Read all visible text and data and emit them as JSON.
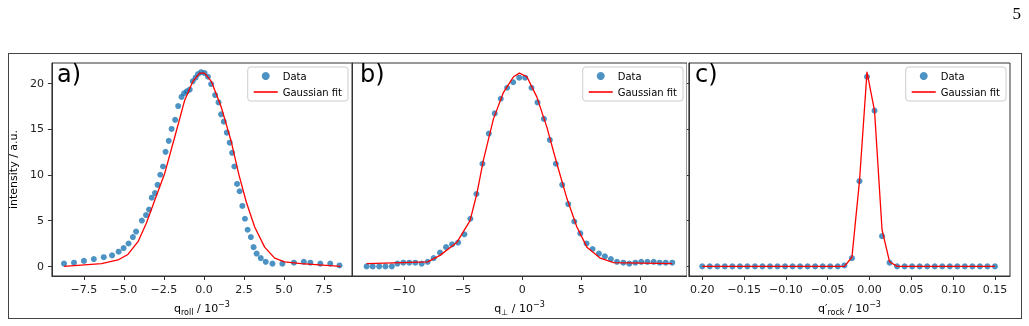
{
  "chart_data": [
    {
      "type": "scatter",
      "title": "a)",
      "xlabel": "q$_{roll}$ / 10$^{−3}$",
      "ylabel": "intensity / a.u.",
      "annotations": [
        "5"
      ],
      "legend": "top right",
      "xlim": [
        -9.5,
        9.25
      ],
      "ylim": [
        -1.05,
        22.2
      ],
      "xticks": [
        {
          "value": -7.5,
          "label": "−7.5"
        },
        {
          "value": -5,
          "label": "−5.0"
        },
        {
          "value": -2.5,
          "label": "−2.5"
        },
        {
          "value": 0,
          "label": "0.0"
        },
        {
          "value": 2.5,
          "label": "2.5"
        },
        {
          "value": 5,
          "label": "5.0"
        },
        {
          "value": 7.5,
          "label": "7.5"
        }
      ],
      "yticks": [
        0,
        5,
        10,
        15,
        20
      ],
      "series": [
        {
          "name": "Data",
          "color": "#1f77b4",
          "marker": "circle",
          "x": [
            -8.74,
            -8.12,
            -7.5,
            -6.88,
            -6.26,
            -5.74,
            -5.33,
            -5.02,
            -4.71,
            -4.44,
            -4.24,
            -3.88,
            -3.62,
            -3.43,
            -3.26,
            -3.06,
            -2.9,
            -2.73,
            -2.56,
            -2.4,
            -2.2,
            -2.02,
            -1.8,
            -1.61,
            -1.4,
            -1.24,
            -1.07,
            -0.89,
            -0.7,
            -0.52,
            -0.37,
            -0.17,
            0.04,
            0.25,
            0.45,
            0.7,
            0.91,
            1.07,
            1.24,
            1.43,
            1.61,
            1.76,
            1.9,
            2.07,
            2.23,
            2.4,
            2.56,
            2.73,
            2.93,
            3.1,
            3.29,
            3.55,
            3.86,
            4.28,
            4.9,
            5.62,
            6.24,
            6.65,
            7.27,
            7.89,
            8.47
          ],
          "values": [
            0.3,
            0.4,
            0.6,
            0.8,
            1.0,
            1.2,
            1.6,
            2.0,
            2.5,
            3.2,
            3.8,
            5.0,
            5.6,
            6.2,
            7.5,
            8.0,
            8.9,
            10.0,
            10.9,
            12.5,
            13.7,
            15.0,
            16.0,
            17.5,
            18.5,
            18.9,
            19.1,
            19.3,
            20.2,
            20.6,
            21.0,
            21.2,
            21.1,
            20.7,
            19.9,
            18.7,
            17.9,
            16.6,
            15.8,
            14.6,
            13.5,
            12.4,
            10.9,
            9.0,
            8.2,
            6.6,
            5.2,
            4.0,
            3.2,
            2.1,
            1.4,
            0.9,
            0.5,
            0.3,
            0.3,
            0.4,
            0.5,
            0.4,
            0.3,
            0.3,
            0.1
          ]
        },
        {
          "name": "Gaussian fit",
          "type": "line",
          "color": "#ff0000",
          "x": [
            -8.74,
            -6.4,
            -5.37,
            -4.75,
            -4.12,
            -3.6,
            -3.08,
            -2.46,
            -1.83,
            -1.21,
            -0.69,
            -0.27,
            0.04,
            0.46,
            1.08,
            1.71,
            2.17,
            2.65,
            3.17,
            3.79,
            4.42,
            5.04,
            6.08,
            8.54
          ],
          "values": [
            0.0,
            0.3,
            0.7,
            1.3,
            2.7,
            4.7,
            7.2,
            10.1,
            14.1,
            18.1,
            20.2,
            21.1,
            21.1,
            20.2,
            17.4,
            13.6,
            10.1,
            7.0,
            4.3,
            2.1,
            0.9,
            0.5,
            0.3,
            0.0
          ]
        }
      ]
    },
    {
      "type": "scatter",
      "title": "b)",
      "xlabel": "q$_{⊥}$ / 10$^{−3}$",
      "tick_labels": "x",
      "legend": "top right",
      "xlim": [
        -14.4,
        13.95
      ],
      "ylim": [
        -1.05,
        22.2
      ],
      "xticks": [
        {
          "value": -10,
          "label": "−10"
        },
        {
          "value": -5,
          "label": "−5"
        },
        0,
        5,
        10
      ],
      "yticks": [
        0,
        5,
        10,
        15,
        20
      ],
      "series": [
        {
          "name": "Data",
          "color": "#1f77b4",
          "marker": "circle",
          "x": [
            -13.16,
            -12.65,
            -12.1,
            -11.57,
            -11.03,
            -10.56,
            -10.06,
            -9.55,
            -9.04,
            -8.5,
            -8.0,
            -7.49,
            -6.95,
            -6.44,
            -5.93,
            -5.42,
            -4.89,
            -4.38,
            -3.87,
            -3.36,
            -2.82,
            -2.32,
            -1.81,
            -1.27,
            -0.76,
            -0.25,
            0.25,
            0.79,
            1.3,
            1.84,
            2.34,
            2.85,
            3.39,
            3.9,
            4.41,
            4.92,
            5.45,
            5.96,
            6.5,
            7.0,
            7.51,
            8.02,
            8.56,
            9.07,
            9.58,
            10.08,
            10.6,
            11.13,
            11.64,
            12.15,
            12.7
          ],
          "values": [
            0.0,
            0.0,
            0.0,
            0.0,
            0.0,
            0.3,
            0.4,
            0.4,
            0.4,
            0.3,
            0.5,
            0.9,
            1.5,
            2.1,
            2.4,
            2.6,
            3.5,
            5.2,
            7.9,
            11.2,
            14.5,
            16.7,
            18.3,
            19.5,
            20.1,
            20.6,
            20.6,
            19.5,
            17.9,
            16.1,
            13.8,
            11.2,
            8.9,
            6.8,
            4.9,
            3.6,
            2.5,
            1.9,
            1.4,
            1.1,
            0.8,
            0.5,
            0.4,
            0.3,
            0.4,
            0.5,
            0.5,
            0.5,
            0.4,
            0.4,
            0.4
          ]
        },
        {
          "name": "Gaussian fit",
          "type": "line",
          "color": "#ff0000",
          "x": [
            -13.16,
            -8.0,
            -6.95,
            -5.54,
            -4.41,
            -3.84,
            -3.28,
            -2.43,
            -1.58,
            -0.73,
            -0.23,
            0.4,
            1.24,
            2.09,
            2.94,
            3.79,
            4.63,
            5.48,
            6.61,
            7.74,
            12.7
          ],
          "values": [
            0.3,
            0.5,
            1.2,
            2.6,
            5.0,
            7.9,
            11.6,
            16.1,
            19.0,
            20.7,
            21.1,
            20.7,
            18.5,
            15.2,
            11.2,
            7.4,
            4.3,
            2.1,
            0.9,
            0.4,
            0.3
          ]
        }
      ]
    },
    {
      "type": "scatter",
      "title": "c)",
      "xlabel": "q′$_{rock}$ / 10$^{−3}$",
      "tick_labels": "x",
      "legend": "top right",
      "xlim": [
        -0.216,
        0.168
      ],
      "ylim": [
        -1.05,
        22.2
      ],
      "xticks": [
        {
          "value": -0.2,
          "label": "0.20"
        },
        {
          "value": -0.15,
          "label": "−0.15"
        },
        {
          "value": -0.1,
          "label": "−0.10"
        },
        {
          "value": -0.05,
          "label": "−0.05"
        },
        {
          "value": 0,
          "label": "0.00"
        },
        {
          "value": 0.05,
          "label": "0.05"
        },
        {
          "value": 0.1,
          "label": "0.10"
        },
        {
          "value": 0.15,
          "label": "0.15"
        }
      ],
      "yticks": [
        0,
        5,
        10,
        15,
        20
      ],
      "series": [
        {
          "name": "Data",
          "color": "#1f77b4",
          "marker": "circle",
          "x": [
            -0.2,
            -0.191,
            -0.182,
            -0.173,
            -0.164,
            -0.155,
            -0.146,
            -0.137,
            -0.128,
            -0.119,
            -0.11,
            -0.101,
            -0.092,
            -0.083,
            -0.074,
            -0.065,
            -0.056,
            -0.047,
            -0.038,
            -0.03,
            -0.021,
            -0.012,
            -0.003,
            0.006,
            0.015,
            0.024,
            0.033,
            0.042,
            0.051,
            0.06,
            0.069,
            0.078,
            0.087,
            0.096,
            0.105,
            0.114,
            0.123,
            0.132,
            0.141,
            0.15
          ],
          "values": [
            0.0,
            0.0,
            0.0,
            0.0,
            0.0,
            0.0,
            0.0,
            0.0,
            0.0,
            0.0,
            0.0,
            0.0,
            0.0,
            0.0,
            0.0,
            0.0,
            0.0,
            0.0,
            0.0,
            0.1,
            0.9,
            9.3,
            20.7,
            17.0,
            3.3,
            0.4,
            0.0,
            0.0,
            0.0,
            0.0,
            0.0,
            0.0,
            0.0,
            0.0,
            0.0,
            0.0,
            0.0,
            0.0,
            0.0,
            0.0
          ]
        },
        {
          "name": "Gaussian fit",
          "type": "line",
          "color": "#ff0000",
          "x": [
            -0.2,
            -0.03,
            -0.021,
            -0.012,
            -0.003,
            0.006,
            0.015,
            0.024,
            0.033,
            0.15
          ],
          "values": [
            0.0,
            0.0,
            1.0,
            9.3,
            21.2,
            17.0,
            4.0,
            0.5,
            0.0,
            0.0
          ]
        }
      ]
    }
  ]
}
